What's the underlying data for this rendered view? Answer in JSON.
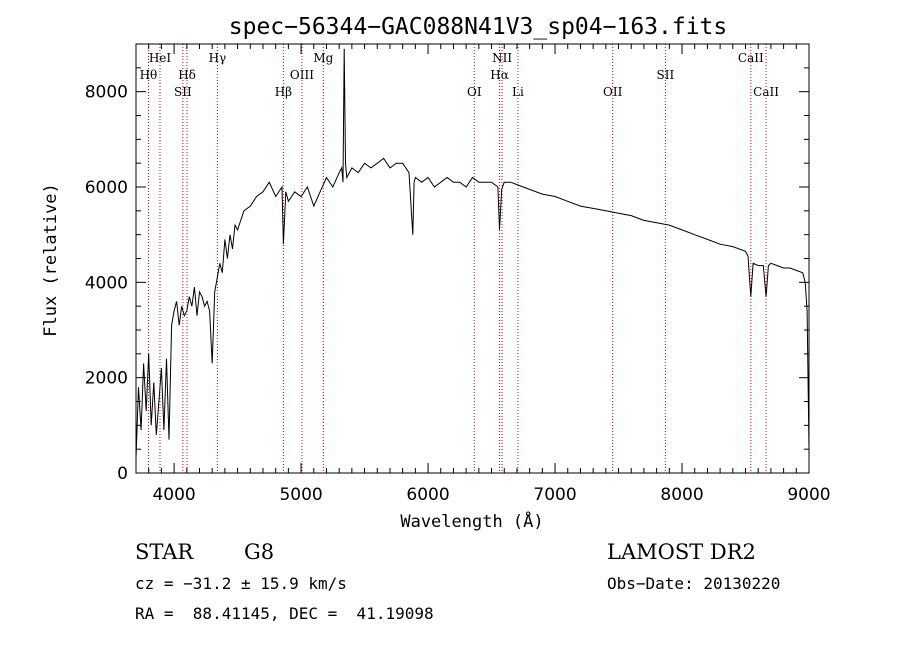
{
  "chart_data": {
    "type": "line",
    "title": "spec−56344−GAC088N41V3_sp04−163.fits",
    "xlabel": "Wavelength (Å)",
    "ylabel": "Flux (relative)",
    "xlim": [
      3700,
      9000
    ],
    "ylim": [
      0,
      9000
    ],
    "x_ticks": [
      4000,
      5000,
      6000,
      7000,
      8000,
      9000
    ],
    "y_ticks": [
      0,
      2000,
      4000,
      6000,
      8000
    ],
    "grid": false,
    "line_color": "#000000",
    "marker_color": "#cc0000",
    "lines": [
      {
        "label": "Hθ",
        "wavelength": 3798,
        "row": 2
      },
      {
        "label": "HeI",
        "wavelength": 3889,
        "row": 1
      },
      {
        "label": "SII",
        "wavelength": 4069,
        "row": 3
      },
      {
        "label": "Hδ",
        "wavelength": 4102,
        "row": 2
      },
      {
        "label": "Hγ",
        "wavelength": 4341,
        "row": 1
      },
      {
        "label": "Hβ",
        "wavelength": 4861,
        "row": 3
      },
      {
        "label": "OIII",
        "wavelength": 5007,
        "row": 2
      },
      {
        "label": "Mg",
        "wavelength": 5175,
        "row": 1
      },
      {
        "label": "OI",
        "wavelength": 6364,
        "row": 3
      },
      {
        "label": "NII",
        "wavelength": 6583,
        "row": 1
      },
      {
        "label": "Hα",
        "wavelength": 6563,
        "row": 2
      },
      {
        "label": "Li",
        "wavelength": 6708,
        "row": 3
      },
      {
        "label": "OII",
        "wavelength": 7454,
        "row": 3
      },
      {
        "label": "SII",
        "wavelength": 7869,
        "row": 2
      },
      {
        "label": "CaII",
        "wavelength": 8542,
        "row": 1
      },
      {
        "label": "CaII",
        "wavelength": 8662,
        "row": 3
      }
    ],
    "spectrum": {
      "x": [
        3700,
        3720,
        3740,
        3760,
        3780,
        3800,
        3820,
        3840,
        3860,
        3880,
        3900,
        3920,
        3940,
        3960,
        3980,
        4000,
        4020,
        4040,
        4060,
        4080,
        4100,
        4120,
        4140,
        4160,
        4180,
        4200,
        4220,
        4240,
        4260,
        4280,
        4300,
        4320,
        4340,
        4360,
        4380,
        4400,
        4420,
        4440,
        4460,
        4480,
        4500,
        4550,
        4600,
        4650,
        4700,
        4750,
        4800,
        4850,
        4861,
        4880,
        4900,
        4950,
        5000,
        5050,
        5100,
        5150,
        5200,
        5250,
        5300,
        5320,
        5330,
        5340,
        5350,
        5360,
        5400,
        5450,
        5500,
        5550,
        5600,
        5650,
        5700,
        5750,
        5800,
        5850,
        5880,
        5890,
        5900,
        5950,
        6000,
        6050,
        6100,
        6150,
        6200,
        6250,
        6300,
        6350,
        6400,
        6450,
        6500,
        6550,
        6563,
        6580,
        6600,
        6650,
        6700,
        6750,
        6800,
        6900,
        7000,
        7100,
        7200,
        7300,
        7400,
        7500,
        7600,
        7700,
        7800,
        7900,
        8000,
        8100,
        8200,
        8300,
        8400,
        8500,
        8520,
        8542,
        8560,
        8600,
        8640,
        8662,
        8680,
        8700,
        8750,
        8800,
        8850,
        8900,
        8950,
        8970,
        8985,
        9000
      ],
      "y": [
        300,
        1800,
        900,
        2300,
        1300,
        2500,
        1000,
        1900,
        800,
        1500,
        2200,
        900,
        2400,
        700,
        3100,
        3400,
        3600,
        3100,
        3500,
        3300,
        3400,
        3700,
        3500,
        3900,
        3300,
        3800,
        3700,
        3500,
        3600,
        3400,
        2300,
        3800,
        4100,
        4400,
        4200,
        4900,
        4500,
        5000,
        4700,
        5200,
        5100,
        5500,
        5600,
        5800,
        5900,
        6100,
        5800,
        6000,
        4800,
        5900,
        5700,
        5900,
        5800,
        6000,
        5600,
        5900,
        6200,
        6000,
        6300,
        6400,
        6100,
        8900,
        6500,
        6200,
        6400,
        6300,
        6500,
        6400,
        6500,
        6600,
        6400,
        6500,
        6500,
        6300,
        5000,
        6100,
        6200,
        6100,
        6200,
        6000,
        6100,
        6200,
        6100,
        6100,
        6000,
        6200,
        6100,
        6100,
        6100,
        6000,
        5100,
        5950,
        6100,
        6100,
        6050,
        6000,
        5950,
        5850,
        5800,
        5700,
        5600,
        5550,
        5500,
        5450,
        5400,
        5300,
        5250,
        5200,
        5100,
        5000,
        4900,
        4800,
        4750,
        4650,
        4550,
        3700,
        4400,
        4350,
        4350,
        3700,
        4350,
        4400,
        4350,
        4300,
        4300,
        4250,
        4200,
        4000,
        3400,
        500
      ]
    }
  },
  "info": {
    "object_class": "STAR",
    "subclass": "G8",
    "survey": "LAMOST DR2",
    "redshift": "cz = −31.2 ± 15.9 km/s",
    "obs_date": "Obs−Date: 20130220",
    "coords": "RA =  88.41145, DEC =  41.19098"
  }
}
